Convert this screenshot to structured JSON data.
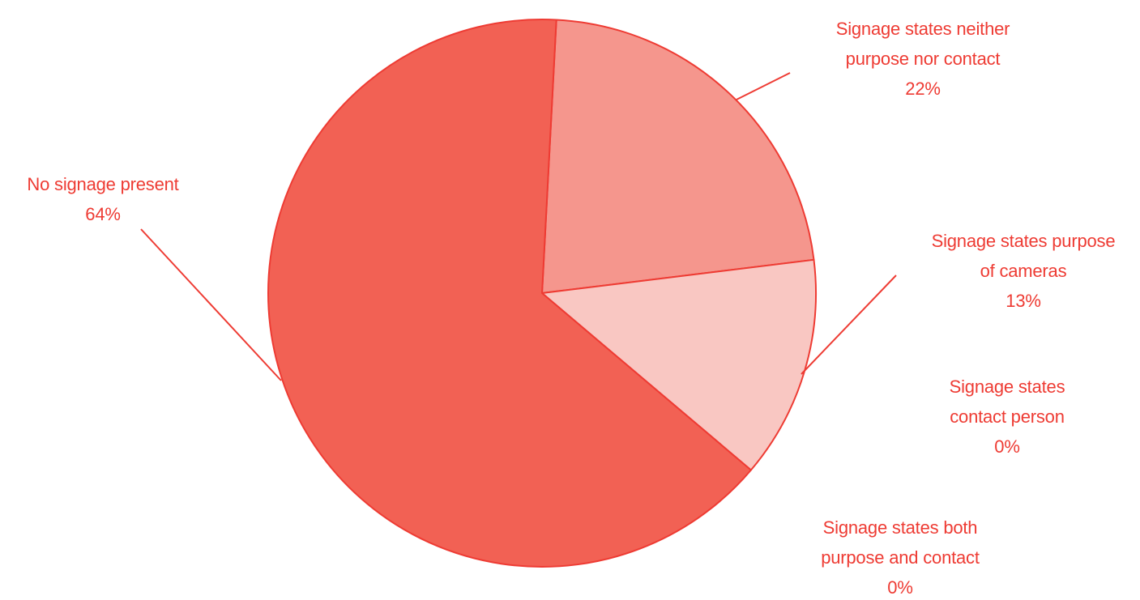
{
  "chart_data": {
    "type": "pie",
    "title": "",
    "slices": [
      {
        "label_lines": [
          "Signage states neither",
          "purpose nor contact"
        ],
        "value": 22,
        "value_label": "22%",
        "color": "#f5968d"
      },
      {
        "label_lines": [
          "Signage states purpose",
          "of cameras"
        ],
        "value": 13,
        "value_label": "13%",
        "color": "#f9c7c2"
      },
      {
        "label_lines": [
          "Signage states",
          "contact person"
        ],
        "value": 0,
        "value_label": "0%",
        "color": "#f9c7c2"
      },
      {
        "label_lines": [
          "Signage states both",
          "purpose and contact"
        ],
        "value": 0,
        "value_label": "0%",
        "color": "#f9c7c2"
      },
      {
        "label_lines": [
          "No signage present"
        ],
        "value": 64,
        "value_label": "64%",
        "color": "#f26154"
      }
    ],
    "start_direction": "top",
    "legend": "none",
    "stroke_color": "#ee3b33",
    "text_color": "#ee3b33"
  }
}
